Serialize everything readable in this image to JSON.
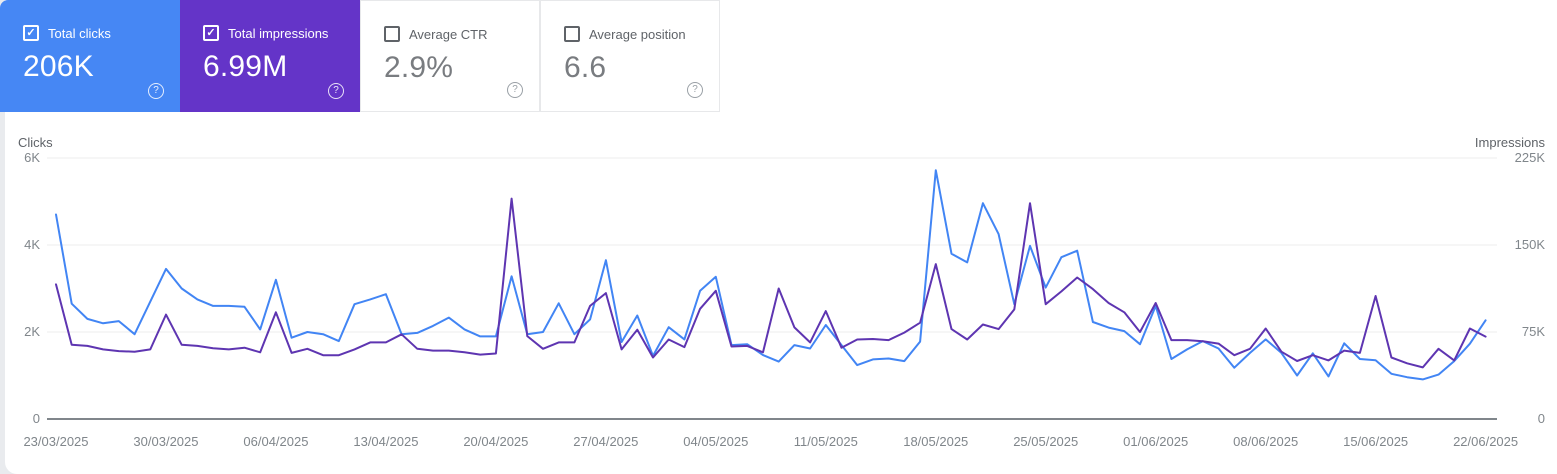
{
  "icons": {
    "check": "✓",
    "help": "?"
  },
  "cards": [
    {
      "label": "Total clicks",
      "value": "206K",
      "checked": true,
      "bg": "#4687f4",
      "fg": "#ffffff"
    },
    {
      "label": "Total impressions",
      "value": "6.99M",
      "checked": true,
      "bg": "#6434c8",
      "fg": "#ffffff"
    },
    {
      "label": "Average CTR",
      "value": "2.9%",
      "checked": false,
      "bg": "#ffffff",
      "fg": "#797c80"
    },
    {
      "label": "Average position",
      "value": "6.6",
      "checked": false,
      "bg": "#ffffff",
      "fg": "#797c80"
    }
  ],
  "chart_data": {
    "type": "line",
    "left_axis": {
      "label": "Clicks",
      "ticks": [
        "0",
        "2K",
        "4K",
        "6K"
      ],
      "tick_values": [
        0,
        2000,
        4000,
        6000
      ],
      "max": 6000
    },
    "right_axis": {
      "label": "Impressions",
      "ticks": [
        "0",
        "75K",
        "150K",
        "225K"
      ],
      "tick_values": [
        0,
        75000,
        150000,
        225000
      ],
      "max": 225000
    },
    "x_tick_labels": [
      "23/03/2025",
      "30/03/2025",
      "06/04/2025",
      "13/04/2025",
      "20/04/2025",
      "27/04/2025",
      "04/05/2025",
      "11/05/2025",
      "18/05/2025",
      "25/05/2025",
      "01/06/2025",
      "08/06/2025",
      "15/06/2025",
      "22/06/2025"
    ],
    "grid": true,
    "legend_position": "none",
    "series": [
      {
        "name": "Clicks",
        "axis": "left",
        "color": "#4285f4",
        "values": [
          4700,
          2650,
          2300,
          2200,
          2250,
          1950,
          2700,
          3450,
          3000,
          2750,
          2600,
          2600,
          2580,
          2060,
          3200,
          1870,
          2000,
          1950,
          1790,
          2640,
          2750,
          2870,
          1950,
          1980,
          2140,
          2330,
          2060,
          1900,
          1900,
          3280,
          1950,
          2000,
          2660,
          1950,
          2290,
          3650,
          1770,
          2380,
          1450,
          2110,
          1830,
          2950,
          3270,
          1700,
          1720,
          1470,
          1320,
          1700,
          1620,
          2160,
          1700,
          1240,
          1370,
          1390,
          1330,
          1780,
          5720,
          3800,
          3600,
          4960,
          4250,
          2640,
          3980,
          3020,
          3720,
          3870,
          2230,
          2100,
          2020,
          1720,
          2600,
          1380,
          1600,
          1790,
          1620,
          1180,
          1520,
          1830,
          1520,
          1000,
          1510,
          980,
          1740,
          1380,
          1350,
          1040,
          960,
          910,
          1020,
          1330,
          1730,
          2270
        ]
      },
      {
        "name": "Impressions",
        "axis": "right",
        "color": "#5e35b1",
        "values": [
          116000,
          64000,
          63000,
          60000,
          58500,
          58000,
          60000,
          90000,
          64000,
          63000,
          61000,
          60000,
          61500,
          57500,
          92000,
          57000,
          60500,
          55000,
          55000,
          60000,
          66000,
          66000,
          73000,
          60500,
          59000,
          59000,
          57500,
          55500,
          56500,
          190000,
          71500,
          60500,
          66000,
          66000,
          97500,
          108500,
          60000,
          77000,
          53000,
          68500,
          62000,
          95000,
          110500,
          62500,
          63000,
          57500,
          112500,
          79000,
          66000,
          93000,
          61500,
          68500,
          69000,
          68000,
          74500,
          83000,
          133500,
          77500,
          68500,
          81500,
          77500,
          94500,
          186000,
          99000,
          110000,
          122000,
          112000,
          100000,
          92000,
          75000,
          100000,
          68000,
          68000,
          67000,
          65000,
          55000,
          60500,
          78000,
          58000,
          50000,
          55000,
          50500,
          59000,
          57000,
          106000,
          53000,
          48000,
          44500,
          60500,
          50500,
          78000,
          71000
        ]
      }
    ]
  },
  "colors": {
    "gridline": "#ececee",
    "axis_line": "#80868b",
    "tick_label": "#80868b",
    "axis_title": "#5f6368"
  }
}
